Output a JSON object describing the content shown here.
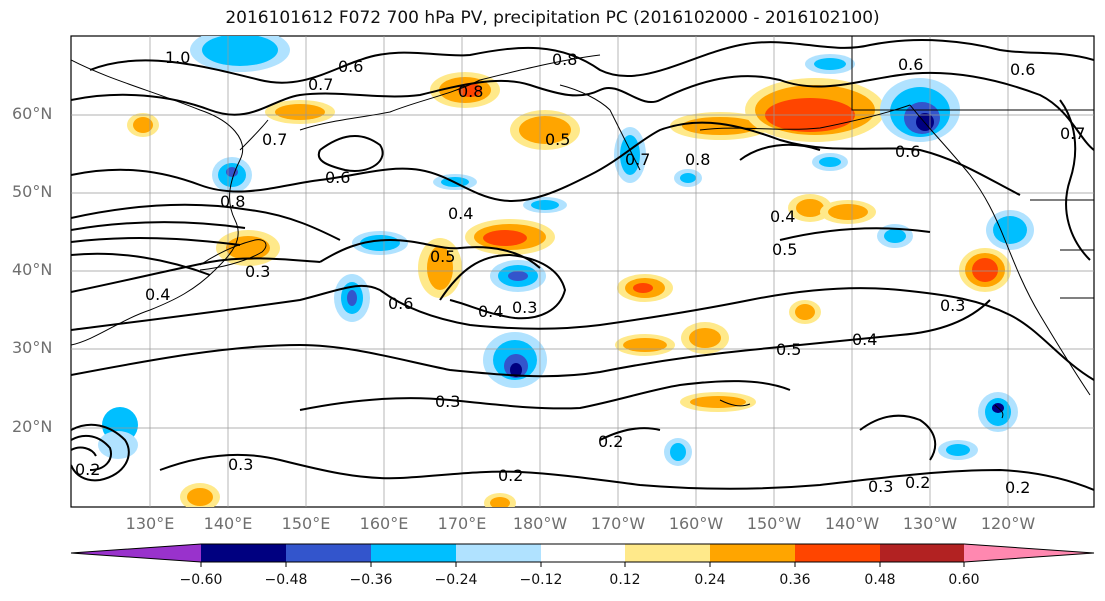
{
  "title": "2016101612 F072 700 hPa PV, precipitation PC (2016102000 - 2016102100)",
  "lat_labels": [
    "60°N",
    "50°N",
    "40°N",
    "30°N",
    "20°N"
  ],
  "lon_labels": [
    "130°E",
    "140°E",
    "150°E",
    "160°E",
    "170°E",
    "180°W",
    "170°W",
    "160°W",
    "150°W",
    "140°W",
    "130°W",
    "120°W"
  ],
  "contour_labels": [
    "1.0",
    "0.6",
    "0.7",
    "0.8",
    "0.8",
    "0.6",
    "0.7",
    "0.7",
    "0.8",
    "0.6",
    "0.8",
    "0.4",
    "0.4",
    "0.5",
    "0.5",
    "0.4",
    "0.3",
    "0.3",
    "0.4",
    "0.3",
    "0.6",
    "0.5",
    "0.4",
    "0.3",
    "0.3",
    "0.2",
    "0.2",
    "0.2",
    "0.3",
    "0.2",
    "0.7",
    "0.6",
    "0.6",
    "0.5",
    "0.2"
  ],
  "colorbar": {
    "ticks": [
      "−0.60",
      "−0.48",
      "−0.36",
      "−0.24",
      "−0.12",
      "0.12",
      "0.24",
      "0.36",
      "0.48",
      "0.60"
    ],
    "colors": [
      "#9932CC",
      "#000080",
      "#3355CC",
      "#00BFFF",
      "#B0E2FF",
      "#FFFFFF",
      "#FFE98A",
      "#FFA500",
      "#FF4500",
      "#B22222",
      "#FF88B0"
    ]
  }
}
